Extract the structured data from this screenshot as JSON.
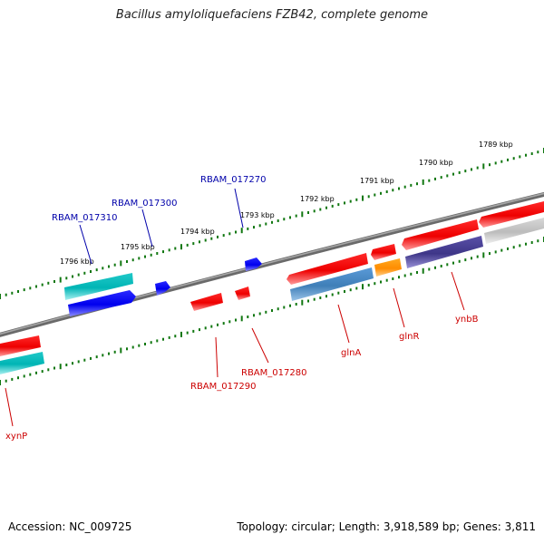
{
  "title": "Bacillus amyloliquefaciens FZB42, complete genome",
  "footer": {
    "accession": "Accession: NC_009725",
    "summary": "Topology: circular; Length: 3,918,589 bp; Genes: 3,811"
  },
  "colors": {
    "backbone": "#7a7a7a",
    "ticks": "#117711",
    "label_forward": "#0000aa",
    "label_reverse": "#cc0000",
    "tick_label": "#000000"
  },
  "kbp_ticks": [
    "1789 kbp",
    "1790 kbp",
    "1791 kbp",
    "1792 kbp",
    "1793 kbp",
    "1794 kbp",
    "1795 kbp",
    "1796 kbp"
  ],
  "gene_labels": {
    "forward": [
      "RBAM_017270",
      "RBAM_017300",
      "RBAM_017310"
    ],
    "reverse": [
      "ynbB",
      "glnR",
      "glnA",
      "RBAM_017280",
      "RBAM_017290",
      "xynP"
    ]
  },
  "feature_colors": [
    "red",
    "blue",
    "cyan",
    "steelblue",
    "orange",
    "darkslateblue",
    "gray"
  ]
}
